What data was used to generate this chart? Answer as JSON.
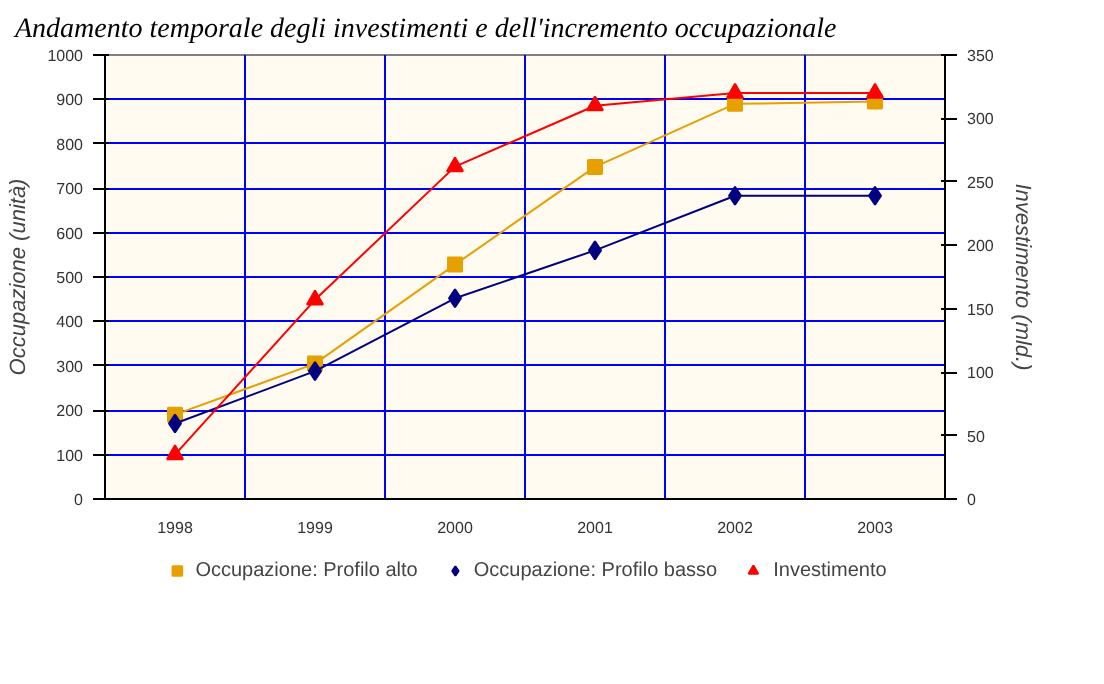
{
  "chart_data": {
    "type": "line",
    "title": "Andamento temporale degli investimenti e dell'incremento occupazionale",
    "ylabel": "Occupazione (unità)",
    "y2label": "Investimento (mld.)",
    "categories": [
      "1998",
      "1999",
      "2000",
      "2001",
      "2002",
      "2003"
    ],
    "series": [
      {
        "name": "Occupazione: Profilo alto",
        "color": "#e6a000",
        "marker": "square",
        "values": [
          190,
          305,
          528,
          748,
          890,
          895
        ]
      },
      {
        "name": "Occupazione: Profilo basso",
        "color": "#000080",
        "marker": "diamond",
        "values": [
          170,
          288,
          452,
          560,
          683,
          683
        ]
      },
      {
        "name": "Investimento",
        "color": "#ff0000",
        "marker": "triangle",
        "axis": "y2",
        "values": [
          35,
          157,
          262,
          310,
          320,
          320
        ]
      }
    ],
    "ylim": [
      0,
      1000
    ],
    "yticks": [
      0,
      100,
      200,
      300,
      400,
      500,
      600,
      700,
      800,
      900,
      1000
    ],
    "y2lim": [
      0,
      350
    ],
    "y2ticks": [
      0,
      50,
      100,
      150,
      200,
      250,
      300,
      350
    ],
    "grid": true,
    "legend": "bottom"
  }
}
